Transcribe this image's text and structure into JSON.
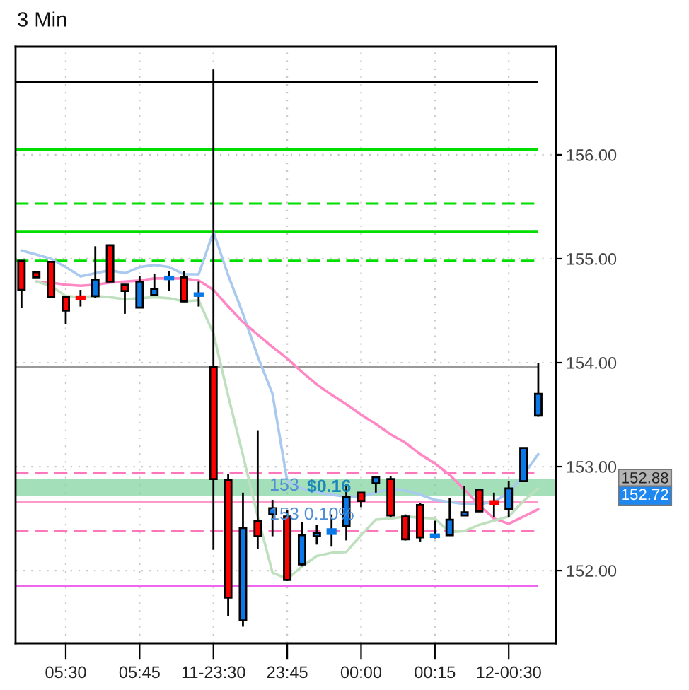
{
  "chart_data": {
    "type": "candlestick",
    "title": "3 Min",
    "categories": [
      null,
      null,
      null,
      "05:30",
      null,
      null,
      null,
      null,
      "05:45",
      null,
      null,
      null,
      null,
      "11-23:30",
      null,
      null,
      null,
      null,
      "23:45",
      null,
      null,
      null,
      null,
      "00:00",
      null,
      null,
      null,
      null,
      "00:15",
      null,
      null,
      null,
      null,
      "12-00:30",
      null,
      null
    ],
    "ohlc": [
      [
        154.98,
        154.98,
        154.53,
        154.7
      ],
      [
        154.87,
        154.87,
        154.82,
        154.82
      ],
      [
        154.97,
        154.97,
        154.63,
        154.63
      ],
      [
        154.63,
        154.63,
        154.37,
        154.5
      ],
      [
        154.63,
        154.7,
        154.54,
        154.62
      ],
      [
        154.64,
        155.12,
        154.62,
        154.8
      ],
      [
        155.13,
        155.13,
        154.78,
        154.78
      ],
      [
        154.75,
        154.75,
        154.47,
        154.69
      ],
      [
        154.53,
        154.83,
        154.53,
        154.78
      ],
      [
        154.65,
        154.85,
        154.65,
        154.71
      ],
      [
        154.81,
        154.88,
        154.69,
        154.82
      ],
      [
        154.82,
        154.88,
        154.59,
        154.59
      ],
      [
        154.65,
        154.78,
        154.54,
        154.66
      ],
      [
        153.96,
        156.82,
        152.2,
        152.88
      ],
      [
        152.87,
        152.93,
        151.56,
        151.74
      ],
      [
        151.52,
        152.75,
        151.46,
        152.41
      ],
      [
        152.48,
        153.35,
        152.21,
        152.33
      ],
      [
        152.54,
        152.68,
        152.33,
        152.6
      ],
      [
        152.52,
        152.58,
        151.9,
        151.91
      ],
      [
        152.06,
        152.47,
        152.04,
        152.34
      ],
      [
        152.33,
        152.44,
        152.25,
        152.36
      ],
      [
        152.36,
        152.54,
        152.23,
        152.39
      ],
      [
        152.43,
        152.83,
        152.29,
        152.71
      ],
      [
        152.75,
        152.75,
        152.61,
        152.67
      ],
      [
        152.84,
        152.9,
        152.75,
        152.9
      ],
      [
        152.88,
        152.91,
        152.51,
        152.53
      ],
      [
        152.52,
        152.54,
        152.29,
        152.3
      ],
      [
        152.63,
        152.65,
        152.28,
        152.32
      ],
      [
        152.33,
        152.48,
        152.31,
        152.34
      ],
      [
        152.34,
        152.7,
        152.34,
        152.49
      ],
      [
        152.53,
        152.81,
        152.53,
        152.56
      ],
      [
        152.78,
        152.78,
        152.57,
        152.57
      ],
      [
        152.66,
        152.75,
        152.51,
        152.65
      ],
      [
        152.59,
        152.86,
        152.51,
        152.79
      ],
      [
        152.86,
        153.18,
        152.86,
        153.18
      ],
      [
        153.49,
        154.0,
        153.48,
        153.7
      ]
    ],
    "colors": [
      "#ff0000",
      "#ff0000",
      "#ff0000",
      "#ff0000",
      "#ff0000",
      "#0a78e6",
      "#ff0000",
      "#ff0000",
      "#0a78e6",
      "#0a78e6",
      "#0a78e6",
      "#ff0000",
      "#0a78e6",
      "#ff0000",
      "#ff0000",
      "#0a78e6",
      "#ff0000",
      "#0a78e6",
      "#ff0000",
      "#0a78e6",
      "#0a78e6",
      "#0a78e6",
      "#0a78e6",
      "#ff0000",
      "#0a78e6",
      "#ff0000",
      "#ff0000",
      "#ff0000",
      "#0a78e6",
      "#0a78e6",
      "#0a78e6",
      "#ff0000",
      "#ff0000",
      "#0a78e6",
      "#0a78e6",
      "#0a78e6"
    ],
    "series": [
      {
        "type": "line",
        "color": "#a9c9ef",
        "values": [
          155.08,
          155.04,
          155.0,
          154.92,
          154.83,
          154.86,
          154.89,
          154.86,
          154.92,
          154.94,
          154.92,
          154.85,
          154.85,
          155.26,
          154.84,
          154.47,
          154.06,
          153.7,
          152.86,
          152.79,
          152.75,
          152.73,
          152.71,
          152.71,
          152.75,
          152.79,
          152.77,
          152.73,
          152.68,
          152.66,
          152.64,
          152.64,
          152.66,
          152.75,
          152.92,
          153.12
        ]
      },
      {
        "type": "line",
        "color": "#ff88c4",
        "values": [
          null,
          154.78,
          154.77,
          154.75,
          154.74,
          154.75,
          154.77,
          154.78,
          154.79,
          154.81,
          154.81,
          154.81,
          154.79,
          154.7,
          154.54,
          154.39,
          154.27,
          154.15,
          154.04,
          153.91,
          153.79,
          153.69,
          153.6,
          153.5,
          153.41,
          153.31,
          153.23,
          153.12,
          153.03,
          152.92,
          152.78,
          152.63,
          152.5,
          152.45,
          152.52,
          152.59
        ]
      },
      {
        "type": "line",
        "color": "#bfe0bf",
        "values": [
          null,
          154.78,
          154.74,
          154.64,
          154.63,
          154.64,
          154.63,
          154.61,
          154.62,
          154.63,
          154.62,
          154.59,
          154.6,
          154.28,
          153.68,
          153.11,
          152.52,
          151.98,
          151.92,
          152.04,
          152.14,
          152.17,
          152.18,
          152.34,
          152.49,
          152.5,
          152.52,
          152.51,
          152.5,
          152.37,
          152.38,
          152.44,
          152.48,
          152.52,
          152.67,
          152.79
        ]
      }
    ],
    "ylim": [
      151.3,
      157.04
    ],
    "yticks": [
      {
        "value": 152,
        "label": "152.00"
      },
      {
        "value": 153,
        "label": "153.00"
      },
      {
        "value": 154,
        "label": "154.00"
      },
      {
        "value": 155,
        "label": "155.00"
      },
      {
        "value": 156,
        "label": "156.00"
      }
    ],
    "grid": true,
    "ref_lines": [
      {
        "axis": "y",
        "value": 156.7,
        "color": "#000000"
      },
      {
        "axis": "y",
        "value": 156.05,
        "color": "#00dd00"
      },
      {
        "axis": "y",
        "value": 155.53,
        "color": "#00dd00",
        "line_style": "dashed"
      },
      {
        "axis": "y",
        "value": 155.26,
        "color": "#00dd00"
      },
      {
        "axis": "y",
        "value": 154.98,
        "color": "#00dd00",
        "line_style": "dashed"
      },
      {
        "axis": "y",
        "value": 153.96,
        "color": "#999999"
      },
      {
        "axis": "y",
        "value": 152.94,
        "color": "#ff77bb",
        "line_style": "dashed",
        "label": "153"
      },
      {
        "axis": "y",
        "value": 152.66,
        "color": "#ff99cc",
        "label": "153 0.10%"
      },
      {
        "axis": "y",
        "value": 152.38,
        "color": "#ff77bb",
        "line_style": "dashed"
      },
      {
        "axis": "y",
        "value": 151.85,
        "color": "#ee66ee"
      }
    ],
    "bands": [
      {
        "axis": "y",
        "from": 152.72,
        "to": 152.88,
        "label": "$0.16",
        "color": "#66c98a"
      }
    ],
    "annotations": [
      "152.88",
      "152.72"
    ]
  }
}
